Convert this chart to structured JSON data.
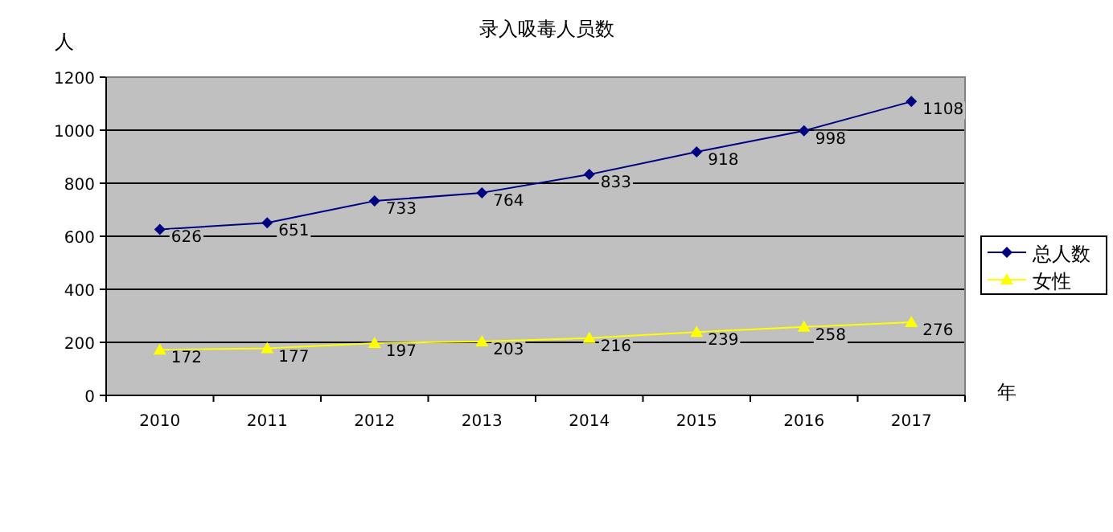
{
  "chart_data": {
    "type": "line",
    "title": "录入吸毒人员数",
    "ylabel": "人",
    "xlabel": "年",
    "categories": [
      "2010",
      "2011",
      "2012",
      "2013",
      "2014",
      "2015",
      "2016",
      "2017"
    ],
    "series": [
      {
        "name": "总人数",
        "color": "#000080",
        "marker": "diamond",
        "values": [
          626,
          651,
          733,
          764,
          833,
          918,
          998,
          1108
        ]
      },
      {
        "name": "女性",
        "color": "#ffff00",
        "marker": "triangle",
        "values": [
          172,
          177,
          197,
          203,
          216,
          239,
          258,
          276
        ]
      }
    ],
    "ylim": [
      0,
      1200
    ],
    "yticks": [
      0,
      200,
      400,
      600,
      800,
      1000,
      1200
    ],
    "grid": "y",
    "legend": "right",
    "data_labels": true
  }
}
